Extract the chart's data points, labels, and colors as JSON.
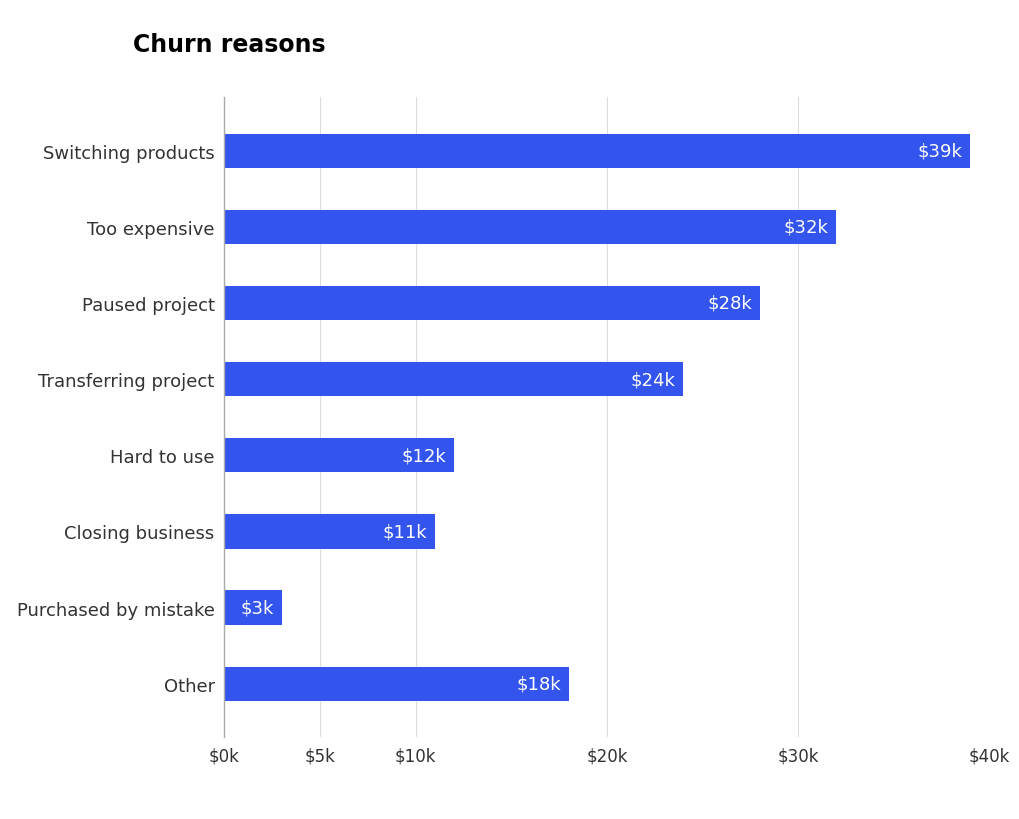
{
  "title": "Churn reasons",
  "categories": [
    "Switching products",
    "Too expensive",
    "Paused project",
    "Transferring project",
    "Hard to use",
    "Closing business",
    "Purchased by mistake",
    "Other"
  ],
  "values": [
    39000,
    32000,
    28000,
    24000,
    12000,
    11000,
    3000,
    18000
  ],
  "labels": [
    "$39k",
    "$32k",
    "$28k",
    "$24k",
    "$12k",
    "$11k",
    "$3k",
    "$18k"
  ],
  "bar_color": "#3355EE",
  "label_color": "#ffffff",
  "title_fontsize": 17,
  "label_fontsize": 13,
  "tick_fontsize": 12,
  "category_fontsize": 13,
  "background_color": "#ffffff",
  "xlim": [
    0,
    40000
  ],
  "xticks": [
    0,
    5000,
    10000,
    20000,
    30000,
    40000
  ],
  "xtick_labels": [
    "$0k",
    "$5k",
    "$10k",
    "$20k",
    "$30k",
    "$40k"
  ],
  "bar_height": 0.45
}
